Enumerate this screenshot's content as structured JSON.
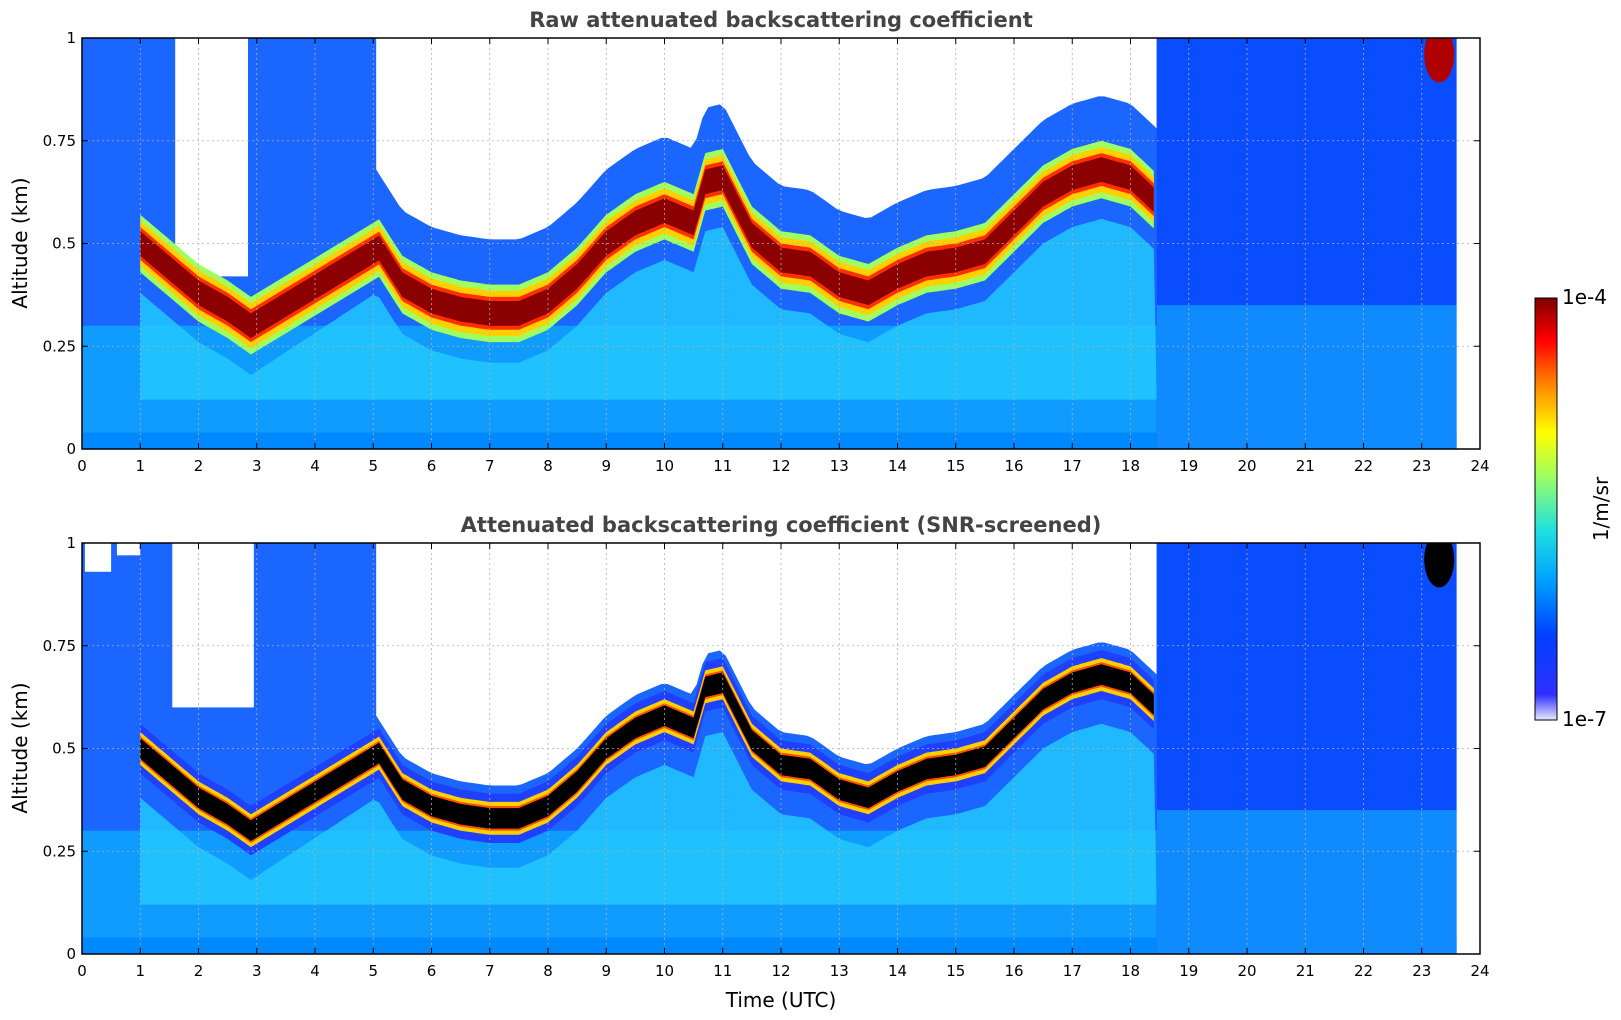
{
  "chart_data": [
    {
      "type": "heatmap",
      "title": "Raw attenuated backscattering coefficient",
      "xlabel": "",
      "ylabel": "Altitude (km)",
      "xlim": [
        0,
        24
      ],
      "ylim": [
        0,
        1
      ],
      "xticks": [
        "0",
        "1",
        "2",
        "3",
        "4",
        "5",
        "6",
        "7",
        "8",
        "9",
        "10",
        "11",
        "12",
        "13",
        "14",
        "15",
        "16",
        "17",
        "18",
        "19",
        "20",
        "21",
        "22",
        "23",
        "24"
      ],
      "yticks": [
        "0",
        "0.25",
        "0.5",
        "0.75",
        "1"
      ],
      "grid": true,
      "data_end_time": 23.6,
      "layer_altitude": {
        "time": [
          1.0,
          1.5,
          2.0,
          2.5,
          2.9,
          5.05,
          5.5,
          6.0,
          6.5,
          7.0,
          7.5,
          8.0,
          8.5,
          9.0,
          9.5,
          10.0,
          10.5,
          10.7,
          11.0,
          11.5,
          12.0,
          12.5,
          13.0,
          13.5,
          14.0,
          14.5,
          15.0,
          15.5,
          16.0,
          16.5,
          17.0,
          17.5,
          18.0,
          18.45
        ],
        "altitude": [
          0.5,
          0.44,
          0.38,
          0.34,
          0.3,
          0.5,
          0.4,
          0.36,
          0.34,
          0.33,
          0.33,
          0.36,
          0.42,
          0.5,
          0.55,
          0.58,
          0.55,
          0.65,
          0.66,
          0.52,
          0.46,
          0.45,
          0.4,
          0.38,
          0.42,
          0.45,
          0.46,
          0.48,
          0.55,
          0.62,
          0.66,
          0.68,
          0.66,
          0.6
        ]
      }
    },
    {
      "type": "heatmap",
      "title": "Attenuated backscattering coefficient (SNR-screened)",
      "xlabel": "Time (UTC)",
      "ylabel": "Altitude (km)",
      "xlim": [
        0,
        24
      ],
      "ylim": [
        0,
        1
      ],
      "xticks": [
        "0",
        "1",
        "2",
        "3",
        "4",
        "5",
        "6",
        "7",
        "8",
        "9",
        "10",
        "11",
        "12",
        "13",
        "14",
        "15",
        "16",
        "17",
        "18",
        "19",
        "20",
        "21",
        "22",
        "23",
        "24"
      ],
      "yticks": [
        "0",
        "0.25",
        "0.5",
        "0.75",
        "1"
      ],
      "grid": true,
      "saturated_color": "#000000",
      "data_end_time": 23.6
    }
  ],
  "colorbar": {
    "label": "1/m/sr",
    "max_label": "1e-4",
    "min_label": "1e-7",
    "range": [
      1e-07,
      0.0001
    ],
    "scale": "log",
    "colormap": "jet"
  },
  "colors": {
    "title": "#444444",
    "grid": "#b0b0b0",
    "no_data": "#ffffff"
  }
}
